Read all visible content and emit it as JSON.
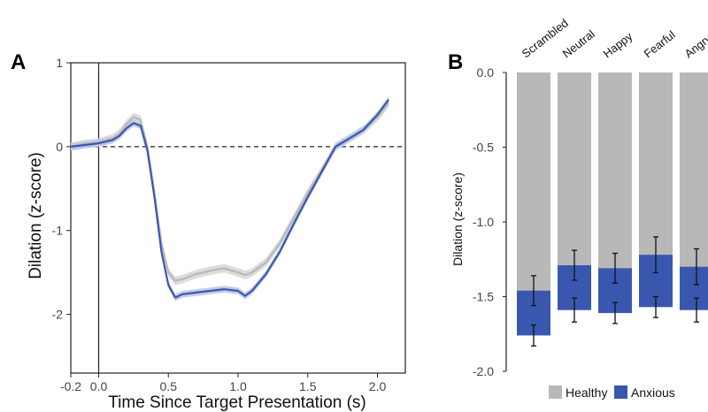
{
  "panels": {
    "a_label": "A",
    "b_label": "B"
  },
  "colors": {
    "healthy": "#b8b8b8",
    "anxious": "#3a57b0",
    "healthy_ribbon": "#d6d6d6",
    "anxious_ribbon": "#b9c3e6",
    "axis": "#222222"
  },
  "chart_data": [
    {
      "panel": "A",
      "type": "line",
      "xlabel": "Time Since Target Presentation (s)",
      "ylabel": "Dilation (z-score)",
      "xlim": [
        -0.2,
        2.2
      ],
      "ylim": [
        -2.7,
        1.0
      ],
      "xticks": [
        -0.2,
        0.0,
        0.5,
        1.0,
        1.5,
        2.0
      ],
      "xtick_labels": [
        "-0.2",
        "0.0",
        "0.5",
        "1.0",
        "1.5",
        "2.0"
      ],
      "yticks": [
        1,
        0,
        -1,
        -2
      ],
      "ytick_labels": [
        "1",
        "0",
        "-1",
        "-2"
      ],
      "reference_lines": {
        "vertical_x": 0.0,
        "horizontal_y": 0.0
      },
      "x": [
        -0.2,
        -0.1,
        0.0,
        0.1,
        0.15,
        0.2,
        0.25,
        0.3,
        0.35,
        0.4,
        0.45,
        0.5,
        0.55,
        0.6,
        0.7,
        0.8,
        0.9,
        1.0,
        1.05,
        1.1,
        1.2,
        1.3,
        1.4,
        1.5,
        1.6,
        1.7,
        1.8,
        1.9,
        2.0,
        2.08
      ],
      "series": [
        {
          "color_key": "healthy",
          "ribbon": 0.05,
          "values": [
            0.0,
            0.03,
            0.05,
            0.1,
            0.16,
            0.27,
            0.35,
            0.32,
            0.0,
            -0.55,
            -1.15,
            -1.5,
            -1.6,
            -1.58,
            -1.52,
            -1.48,
            -1.45,
            -1.5,
            -1.53,
            -1.5,
            -1.38,
            -1.15,
            -0.85,
            -0.55,
            -0.28,
            0.0,
            0.1,
            0.2,
            0.35,
            0.52
          ]
        },
        {
          "color_key": "anxious",
          "ribbon": 0.04,
          "values": [
            0.0,
            0.02,
            0.04,
            0.08,
            0.13,
            0.22,
            0.28,
            0.25,
            -0.05,
            -0.6,
            -1.25,
            -1.65,
            -1.8,
            -1.76,
            -1.74,
            -1.72,
            -1.7,
            -1.72,
            -1.78,
            -1.72,
            -1.52,
            -1.25,
            -0.92,
            -0.6,
            -0.3,
            0.0,
            0.1,
            0.2,
            0.38,
            0.56
          ]
        }
      ]
    },
    {
      "panel": "B",
      "type": "bar",
      "ylabel": "Dilation (z-score)",
      "categories": [
        "Scrambled",
        "Neutral",
        "Happy",
        "Fearful",
        "Angry"
      ],
      "ylim": [
        -2.0,
        0.0
      ],
      "yticks": [
        0.0,
        -0.5,
        -1.0,
        -1.5,
        -2.0
      ],
      "ytick_labels": [
        "0.0",
        "-0.5",
        "-1.0",
        "-1.5",
        "-2.0"
      ],
      "legend_position": "bottom",
      "series": [
        {
          "name": "Healthy",
          "color_key": "healthy",
          "values": [
            -1.46,
            -1.29,
            -1.31,
            -1.22,
            -1.3
          ],
          "error": [
            0.1,
            0.1,
            0.1,
            0.12,
            0.12
          ]
        },
        {
          "name": "Anxious",
          "color_key": "anxious",
          "values": [
            -1.76,
            -1.59,
            -1.61,
            -1.57,
            -1.59
          ],
          "error": [
            0.07,
            0.08,
            0.07,
            0.07,
            0.08
          ]
        }
      ]
    }
  ]
}
